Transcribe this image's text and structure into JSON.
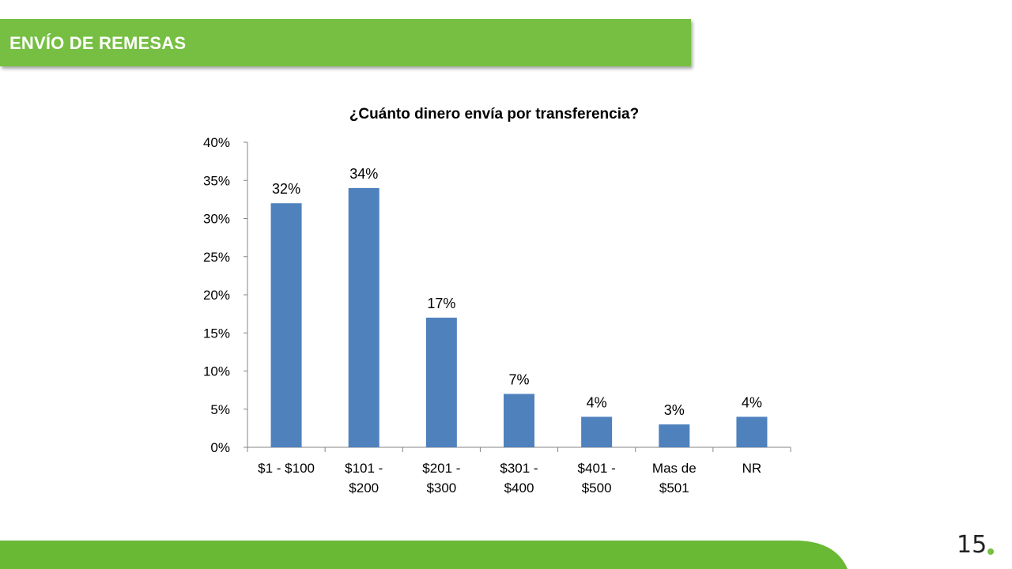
{
  "header": {
    "title": "ENVÍO DE REMESAS"
  },
  "colors": {
    "brand_green": "#76bf42",
    "footer_green": "#6ab934",
    "bar_blue": "#4f81bd",
    "axis": "#868686",
    "text": "#000000"
  },
  "page": {
    "number": "15"
  },
  "chart_data": {
    "type": "bar",
    "title": "¿Cuánto dinero envía por transferencia?",
    "categories": [
      [
        "$1 - $100"
      ],
      [
        "$101 -",
        "$200"
      ],
      [
        "$201 -",
        "$300"
      ],
      [
        "$301 -",
        "$400"
      ],
      [
        "$401 -",
        "$500"
      ],
      [
        "Mas de",
        "$501"
      ],
      [
        "NR"
      ]
    ],
    "values": [
      32,
      34,
      17,
      7,
      4,
      3,
      4
    ],
    "data_labels": [
      "32%",
      "34%",
      "17%",
      "7%",
      "4%",
      "3%",
      "4%"
    ],
    "ylim": [
      0,
      40
    ],
    "yticks": [
      "0%",
      "5%",
      "10%",
      "15%",
      "20%",
      "25%",
      "30%",
      "35%",
      "40%"
    ],
    "unit": "%",
    "grid": false,
    "legend": "none"
  }
}
